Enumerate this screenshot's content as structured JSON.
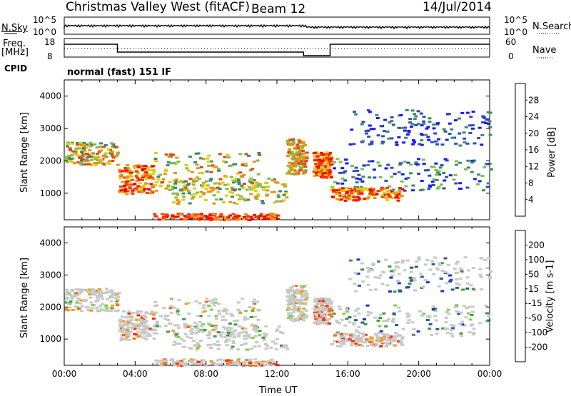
{
  "header": {
    "station": "Christmas Valley West (fitACF)",
    "beam": "Beam 12",
    "date": "14/Jul/2014",
    "cpid_label": "CPID",
    "mode": "normal (fast) 151 IF"
  },
  "top_panels": {
    "nsky_label": "N.Sky",
    "nsearch_label": "N.Search",
    "nsky_ticks": [
      "10^5",
      "10^0"
    ],
    "nsearch_ticks": [
      "10^5",
      "10^0"
    ],
    "freq_label": "Freq.",
    "freq_unit": "[MHz]",
    "freq_ticks": [
      "18",
      "8"
    ],
    "nave_label": "Nave",
    "nave_ticks": [
      "60",
      "0"
    ]
  },
  "chart_data": [
    {
      "type": "heatmap",
      "name": "power-panel",
      "ylabel": "Slant Range [km]",
      "ylim": [
        180,
        4500
      ],
      "yticks": [
        1000,
        2000,
        3000,
        4000
      ],
      "xlim": [
        0,
        24
      ],
      "colorbar": {
        "label": "Power [dB]",
        "ticks": [
          "4",
          "8",
          "12",
          "16",
          "20",
          "24",
          "28"
        ],
        "colors": [
          "#1a1aff",
          "#2f4fb0",
          "#3d8a6a",
          "#7fbf4a",
          "#d7d010",
          "#f09010",
          "#f04010",
          "#ff0000"
        ]
      }
    },
    {
      "type": "heatmap",
      "name": "velocity-panel",
      "ylabel": "Slant Range [km]",
      "ylim": [
        180,
        4500
      ],
      "yticks": [
        1000,
        2000,
        3000,
        4000
      ],
      "xlim": [
        0,
        24
      ],
      "xticks": [
        "00:00",
        "04:00",
        "08:00",
        "12:00",
        "16:00",
        "20:00",
        "00:00"
      ],
      "xlabel": "Time UT",
      "colorbar": {
        "label": "Velocity [m s-1]",
        "ticks": [
          "200",
          "100",
          "50",
          "15",
          "-15",
          "-50",
          "-100",
          "-200"
        ],
        "colors": [
          "#1a2fd0",
          "#2a6090",
          "#3e9a3e",
          "#7ed24c",
          "#c8c8c8",
          "#f0a020",
          "#f07010",
          "#f03010",
          "#ff0000"
        ]
      }
    }
  ]
}
